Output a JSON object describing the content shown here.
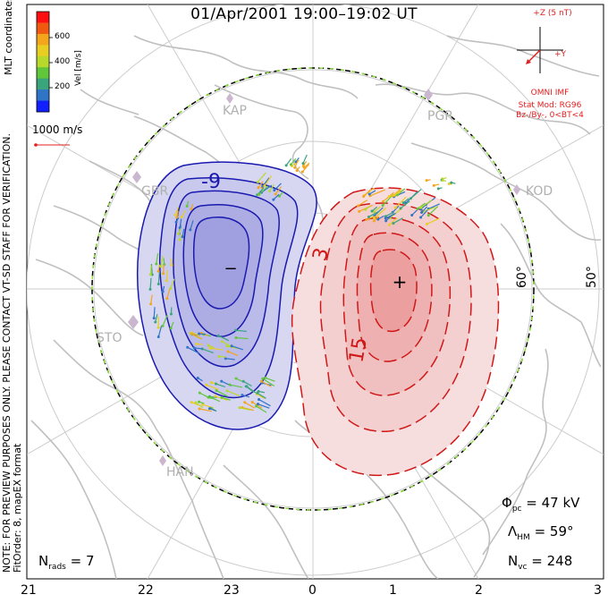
{
  "title": "01/Apr/2001  19:00–19:02 UT",
  "colorbar": {
    "label": "Vel [m/s]",
    "ticks": [
      "600",
      "400",
      "200"
    ],
    "colors": [
      "#ff1010",
      "#f05a10",
      "#f3a51c",
      "#e8cd23",
      "#b7d92b",
      "#62c63a",
      "#3aa47d",
      "#2f74c7",
      "#1020ff"
    ]
  },
  "scale": {
    "label": "1000 m/s"
  },
  "coords_label": "MLT coordinates",
  "note": "NOTE: FOR PREVIEW PURPOSES ONLY. PLEASE CONTACT VT-SD STAFF FOR VERIFICATION.",
  "fit_order": "FitOrder: 8, mapEX format",
  "imf": {
    "axis_label": "+Z (5 nT)",
    "y_label": "+Y",
    "source": "OMNI IMF",
    "model": "Stat Mod: RG96",
    "condition": "Bz-/By-, 0<BT<4",
    "color": "#e02020"
  },
  "stations": [
    "KAP",
    "PGR",
    "KOD",
    "GBR",
    "STO",
    "HAN"
  ],
  "latitude_labels": [
    "60°",
    "50°"
  ],
  "contours": {
    "negative_label": "-9",
    "positive_labels": [
      "3",
      "15"
    ],
    "negative_color": "#1a1ab0",
    "positive_color": "#d01818",
    "min_marker": "−",
    "max_marker": "+"
  },
  "stats": {
    "phi_symbol": "Φ",
    "phi_sub": "pc",
    "phi_value": "= 47 kV",
    "lambda_symbol": "Λ",
    "lambda_sub": "HM",
    "lambda_value": "= 59°",
    "nvc_symbol": "N",
    "nvc_sub": "vc",
    "nvc_value": "= 248",
    "nrads_symbol": "N",
    "nrads_sub": "rads",
    "nrads_value": "= 7"
  },
  "mlt_ticks": [
    "21",
    "22",
    "23",
    "0",
    "1",
    "2",
    "3"
  ]
}
